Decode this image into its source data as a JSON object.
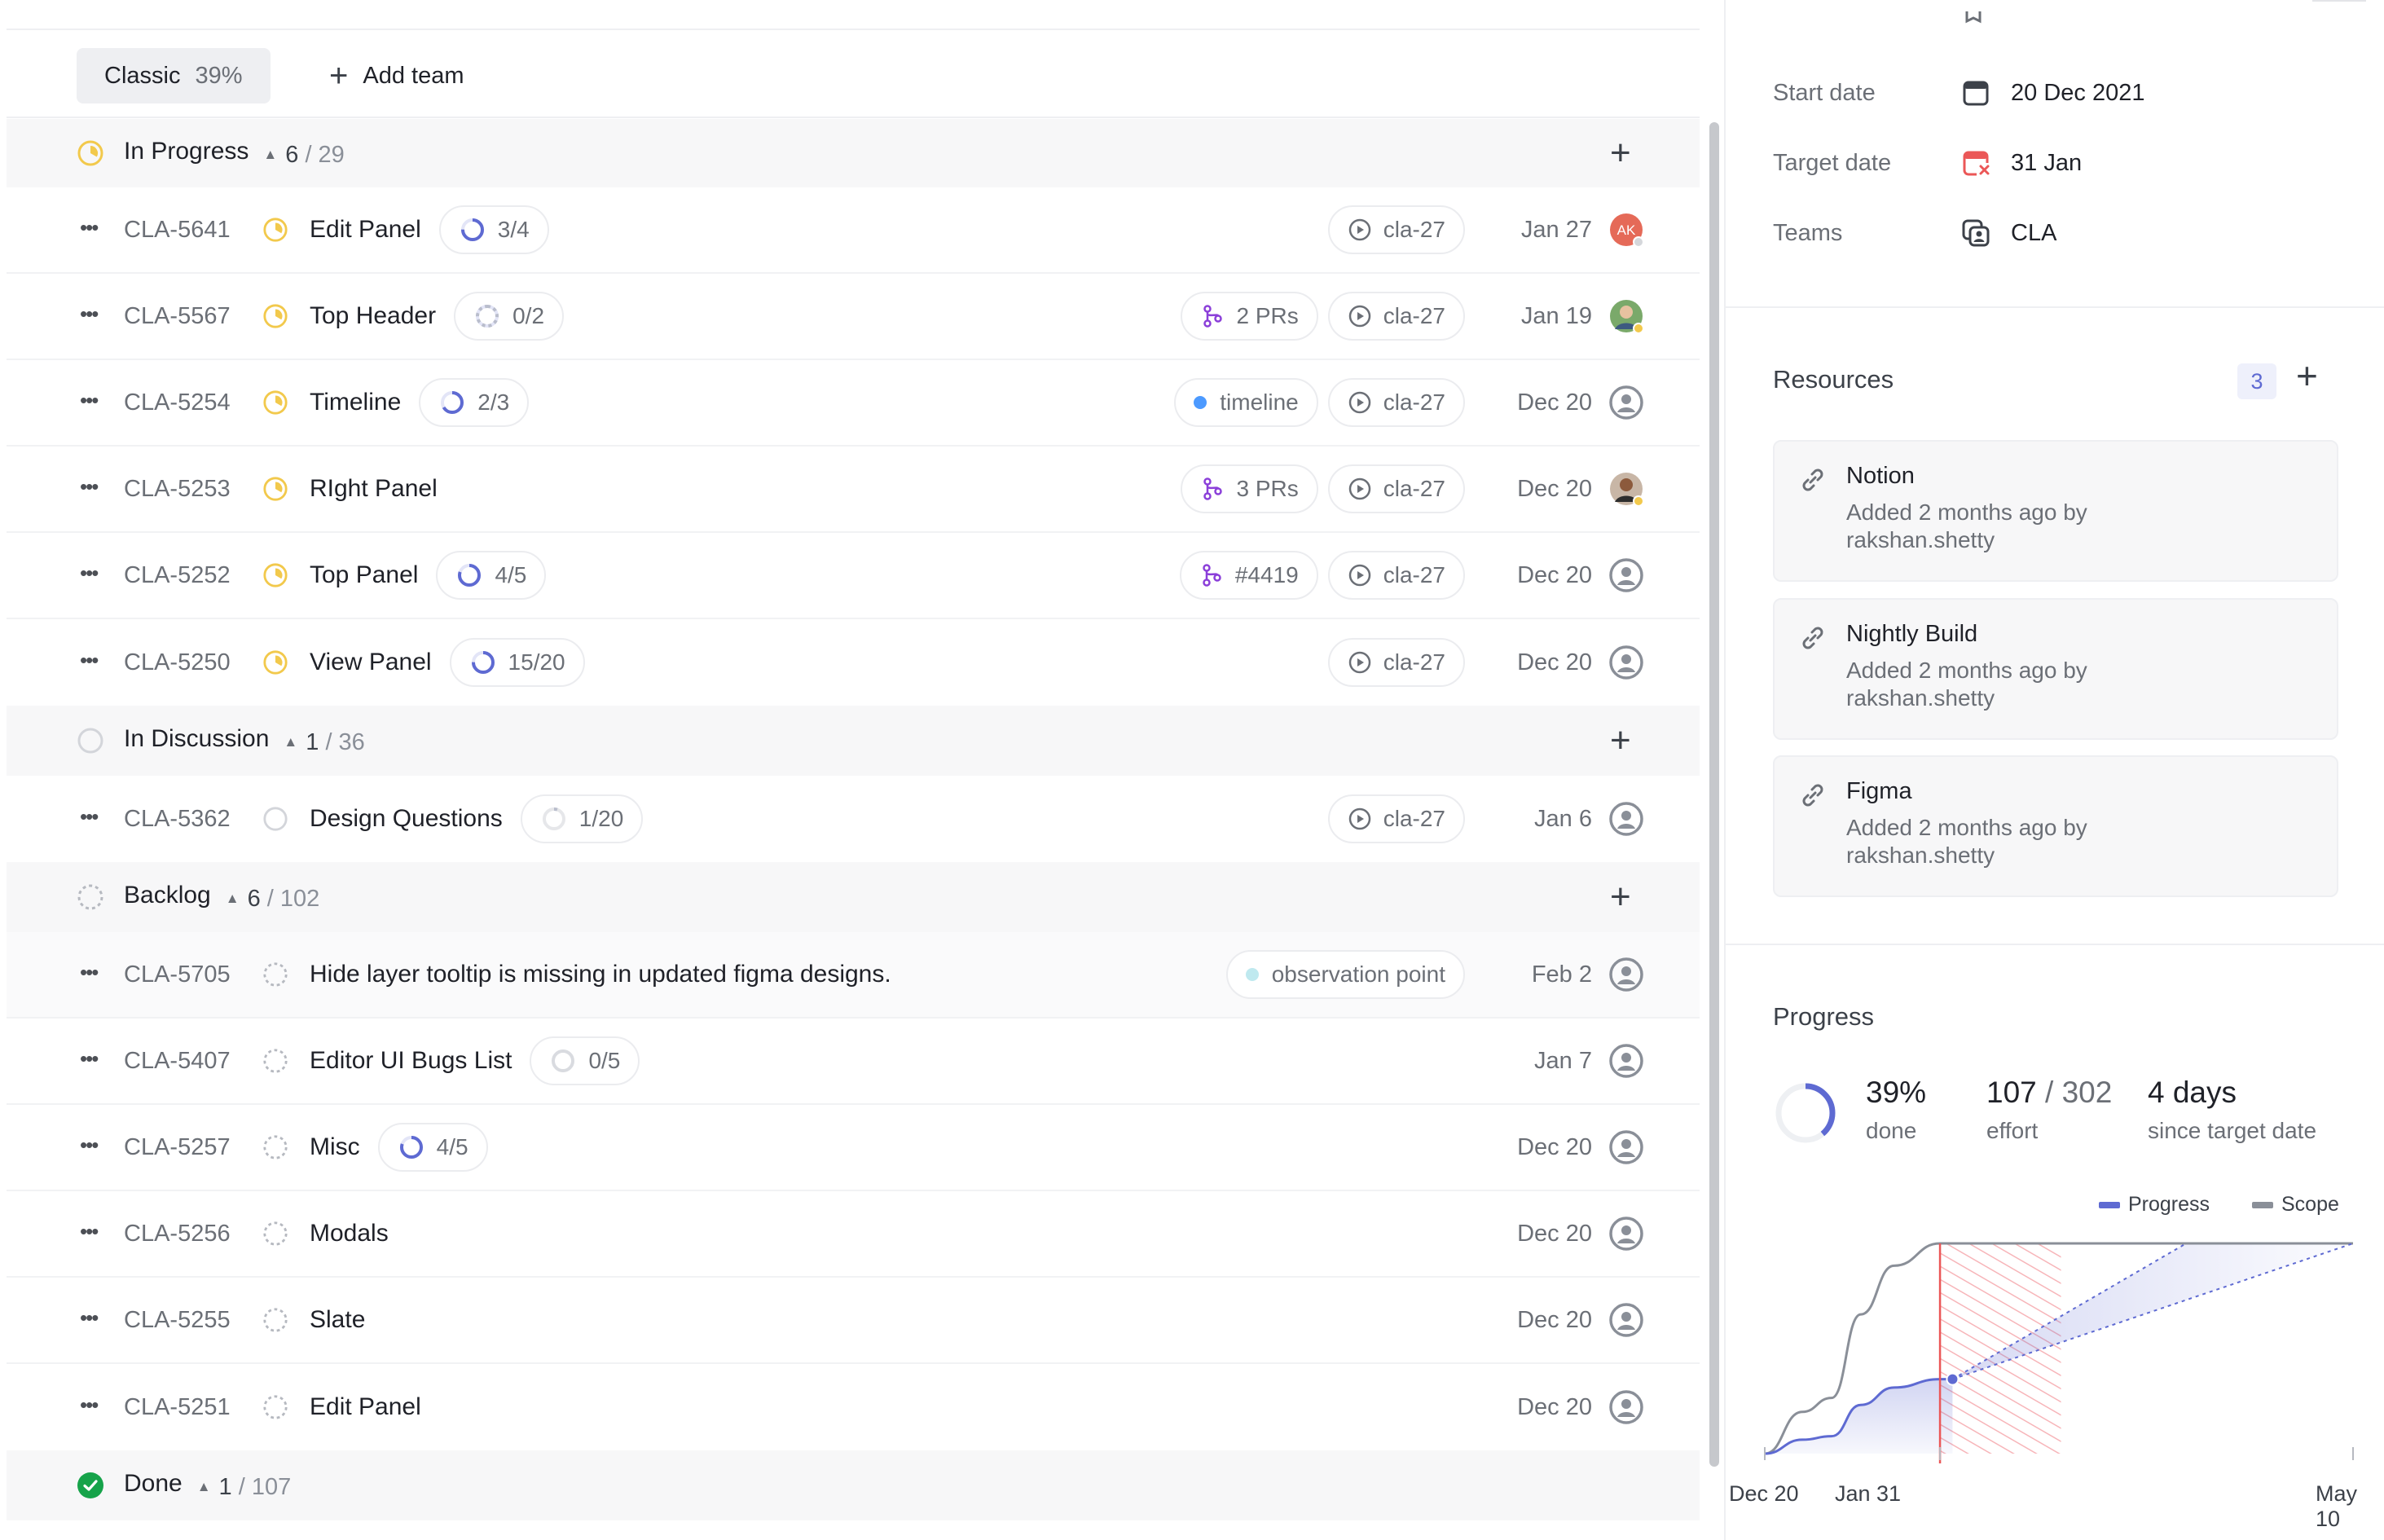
{
  "view_tab": {
    "label": "Classic",
    "percent": "39%"
  },
  "add_team_label": "Add team",
  "sections": [
    {
      "label": "In Progress",
      "count": "6",
      "total": "/ 29"
    },
    {
      "label": "In Discussion",
      "count": "1",
      "total": "/ 36"
    },
    {
      "label": "Backlog",
      "count": "6",
      "total": "/ 102"
    },
    {
      "label": "Done",
      "count": "1",
      "total": "/ 107"
    }
  ],
  "issues": [
    {
      "id": "CLA-5641",
      "title": "Edit Panel",
      "subtasks": "3/4",
      "pr": "",
      "label": "",
      "cycle": "cla-27",
      "date": "Jan 27",
      "avatar": "AK"
    },
    {
      "id": "CLA-5567",
      "title": "Top Header",
      "subtasks": "0/2",
      "pr": "2 PRs",
      "label": "",
      "cycle": "cla-27",
      "date": "Jan 19",
      "avatar": ""
    },
    {
      "id": "CLA-5254",
      "title": "Timeline",
      "subtasks": "2/3",
      "pr": "",
      "label": "timeline",
      "cycle": "cla-27",
      "date": "Dec 20",
      "avatar": ""
    },
    {
      "id": "CLA-5253",
      "title": "RIght Panel",
      "subtasks": "",
      "pr": "3 PRs",
      "label": "",
      "cycle": "cla-27",
      "date": "Dec 20",
      "avatar": ""
    },
    {
      "id": "CLA-5252",
      "title": "Top Panel",
      "subtasks": "4/5",
      "pr": "#4419",
      "label": "",
      "cycle": "cla-27",
      "date": "Dec 20",
      "avatar": ""
    },
    {
      "id": "CLA-5250",
      "title": "View Panel",
      "subtasks": "15/20",
      "pr": "",
      "label": "",
      "cycle": "cla-27",
      "date": "Dec 20",
      "avatar": ""
    },
    {
      "id": "CLA-5362",
      "title": "Design Questions",
      "subtasks": "1/20",
      "pr": "",
      "label": "",
      "cycle": "cla-27",
      "date": "Jan 6",
      "avatar": ""
    },
    {
      "id": "CLA-5705",
      "title": "Hide layer tooltip is missing in updated figma designs.",
      "subtasks": "",
      "pr": "",
      "label": "observation point",
      "cycle": "",
      "date": "Feb 2",
      "avatar": ""
    },
    {
      "id": "CLA-5407",
      "title": "Editor UI Bugs List",
      "subtasks": "0/5",
      "pr": "",
      "label": "",
      "cycle": "",
      "date": "Jan 7",
      "avatar": ""
    },
    {
      "id": "CLA-5257",
      "title": "Misc",
      "subtasks": "4/5",
      "pr": "",
      "label": "",
      "cycle": "",
      "date": "Dec 20",
      "avatar": ""
    },
    {
      "id": "CLA-5256",
      "title": "Modals",
      "subtasks": "",
      "pr": "",
      "label": "",
      "cycle": "",
      "date": "Dec 20",
      "avatar": ""
    },
    {
      "id": "CLA-5255",
      "title": "Slate",
      "subtasks": "",
      "pr": "",
      "label": "",
      "cycle": "",
      "date": "Dec 20",
      "avatar": ""
    },
    {
      "id": "CLA-5251",
      "title": "Edit Panel",
      "subtasks": "",
      "pr": "",
      "label": "",
      "cycle": "",
      "date": "Dec 20",
      "avatar": ""
    }
  ],
  "properties": [
    {
      "label": "Start date",
      "value": "20 Dec 2021"
    },
    {
      "label": "Target date",
      "value": "31 Jan"
    },
    {
      "label": "Teams",
      "value": "CLA"
    }
  ],
  "resources": {
    "title": "Resources",
    "count": "3",
    "items": [
      {
        "name": "Notion",
        "meta": "Added 2 months ago by rakshan.shetty"
      },
      {
        "name": "Nightly Build",
        "meta": "Added 2 months ago by rakshan.shetty"
      },
      {
        "name": "Figma",
        "meta": "Added 2 months ago by rakshan.shetty"
      }
    ]
  },
  "progress": {
    "title": "Progress",
    "done_value": "39%",
    "done_label": "done",
    "effort_value": "107",
    "effort_total": "/ 302",
    "effort_label": "effort",
    "days_value": "4 days",
    "days_label": "since target date"
  },
  "colors": {
    "accent": "#5e6ad2",
    "in_progress": "#f2c94c",
    "done": "#16a34a",
    "target_overdue": "#eb5757",
    "pr": "#8b3fd9",
    "label_timeline": "#4c9aff",
    "label_observation": "#bfe9ef"
  },
  "chart_data": {
    "type": "line",
    "x_ticks": [
      "Dec 20",
      "Jan 31",
      "May 10"
    ],
    "legend": [
      "Progress",
      "Scope"
    ],
    "series": [
      {
        "name": "Scope",
        "points": [
          [
            "Dec 20",
            0
          ],
          [
            "Dec 29",
            60
          ],
          [
            "Jan 5",
            80
          ],
          [
            "Jan 12",
            200
          ],
          [
            "Jan 20",
            270
          ],
          [
            "Jan 31",
            302
          ],
          [
            "May 10",
            302
          ]
        ]
      },
      {
        "name": "Progress",
        "points": [
          [
            "Dec 20",
            0
          ],
          [
            "Dec 29",
            20
          ],
          [
            "Jan 5",
            25
          ],
          [
            "Jan 12",
            70
          ],
          [
            "Jan 20",
            95
          ],
          [
            "Jan 31",
            107
          ],
          [
            "Feb 3",
            107
          ]
        ]
      }
    ],
    "ylim": [
      0,
      302
    ]
  }
}
